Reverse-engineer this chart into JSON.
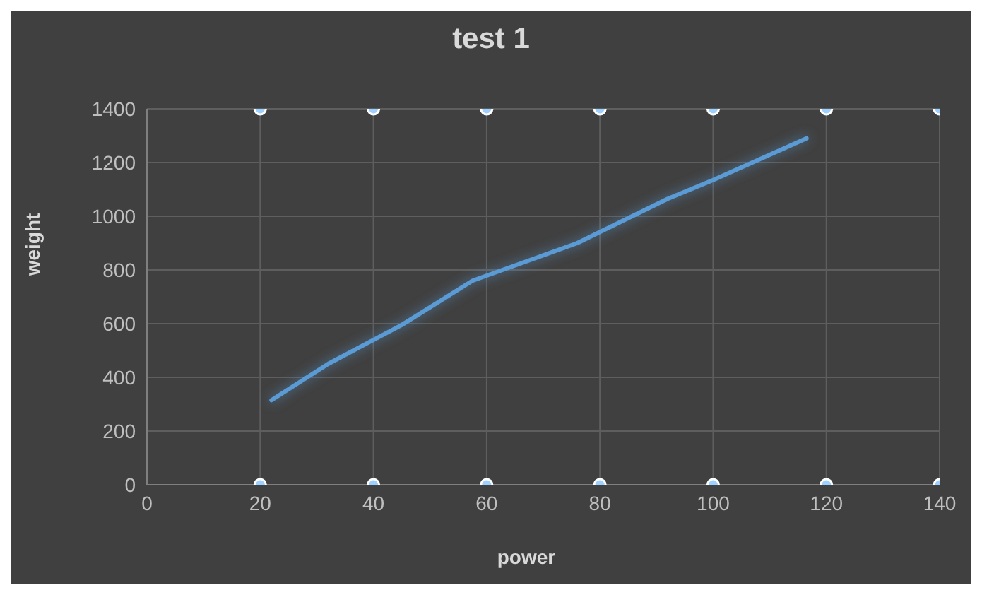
{
  "chart_data": {
    "type": "line",
    "title": "test 1",
    "xlabel": "power",
    "ylabel": "weight",
    "x": [
      22,
      32,
      45,
      57.5,
      76,
      92,
      100,
      116.5
    ],
    "series": [
      {
        "color": "#5b9bd5",
        "values": [
          315,
          450,
          595,
          760,
          900,
          1065,
          1135,
          1290
        ]
      },
      {
        "type": "scatter",
        "color": "#9dd0ff",
        "marker": "circle",
        "x": [
          20,
          20,
          40,
          40,
          60,
          60,
          80,
          80,
          100,
          100,
          120,
          120,
          140,
          140
        ],
        "values": [
          0,
          1400,
          0,
          1400,
          0,
          1400,
          0,
          1400,
          0,
          1400,
          0,
          1400,
          0,
          1400
        ]
      }
    ],
    "xlim": [
      0,
      140
    ],
    "xticks": [
      0,
      20,
      40,
      60,
      80,
      100,
      120,
      140
    ],
    "ylim": [
      0,
      1400
    ],
    "yticks": [
      0,
      200,
      400,
      600,
      800,
      1000,
      1200,
      1400
    ],
    "grid": true,
    "marker": "none",
    "line_style": "solid"
  }
}
